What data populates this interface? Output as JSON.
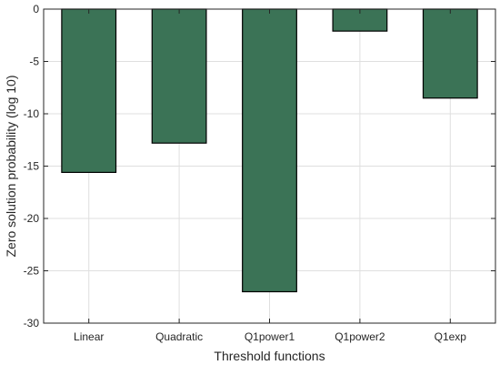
{
  "chart_data": {
    "type": "bar",
    "title": "",
    "xlabel": "Threshold functions",
    "ylabel": "Zero solution probability (log 10)",
    "categories": [
      "Linear",
      "Quadratic",
      "Q1power1",
      "Q1power2",
      "Q1exp"
    ],
    "values": [
      -15.6,
      -12.8,
      -27.0,
      -2.1,
      -8.5
    ],
    "ylim": [
      -30,
      0
    ],
    "yticks": [
      0,
      -5,
      -10,
      -15,
      -20,
      -25,
      -30
    ],
    "ytick_labels": [
      "0",
      "-5",
      "-10",
      "-15",
      "-20",
      "-25",
      "-30"
    ],
    "grid": true,
    "legend": "none",
    "colors": {
      "bar_fill": "#3b7356",
      "bar_edge": "#000000",
      "grid": "#dfdfdf",
      "axis": "#262626"
    }
  }
}
